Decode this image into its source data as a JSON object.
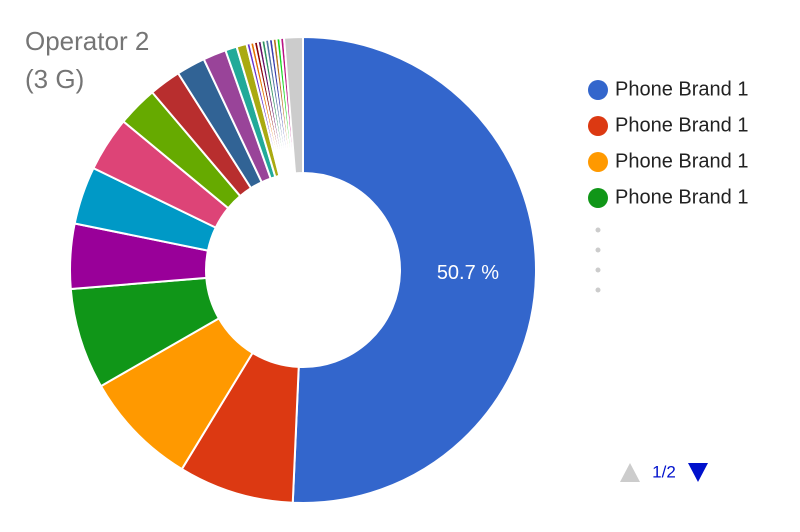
{
  "chart_data": {
    "type": "pie",
    "title": "Operator 2 (3 G)",
    "donut": true,
    "categories": [
      "Phone Brand 1",
      "Phone Brand 1",
      "Phone Brand 1",
      "Phone Brand 1",
      null,
      null,
      null,
      null,
      null,
      null,
      null,
      null,
      null,
      null,
      null,
      null,
      null,
      null,
      null,
      null,
      null,
      null,
      null,
      null
    ],
    "values": [
      50.7,
      8,
      8,
      7,
      4.5,
      4,
      3.8,
      2.8,
      2.2,
      2,
      1.6,
      0.8,
      0.7,
      0.26,
      0.26,
      0.26,
      0.26,
      0.26,
      0.26,
      0.26,
      0.26,
      0.26,
      0.26,
      1.3
    ],
    "value_labels": [
      "50.7 %",
      null,
      null,
      null,
      null,
      null,
      null,
      null,
      null,
      null,
      null,
      null,
      null,
      null,
      null,
      null,
      null,
      null,
      null,
      null,
      null,
      null,
      null,
      null
    ],
    "colors": [
      "#3366cc",
      "#dc3912",
      "#ff9900",
      "#109618",
      "#990099",
      "#0099c6",
      "#dd4477",
      "#66aa00",
      "#b82e2e",
      "#316395",
      "#994499",
      "#22aa99",
      "#aaaa11",
      "#6633cc",
      "#e67300",
      "#8b0707",
      "#651067",
      "#329262",
      "#5574a6",
      "#3b3eac",
      "#b77322",
      "#16d620",
      "#b91383",
      "#cccccc"
    ],
    "legend_position": "right",
    "legend_page": "1/2"
  }
}
